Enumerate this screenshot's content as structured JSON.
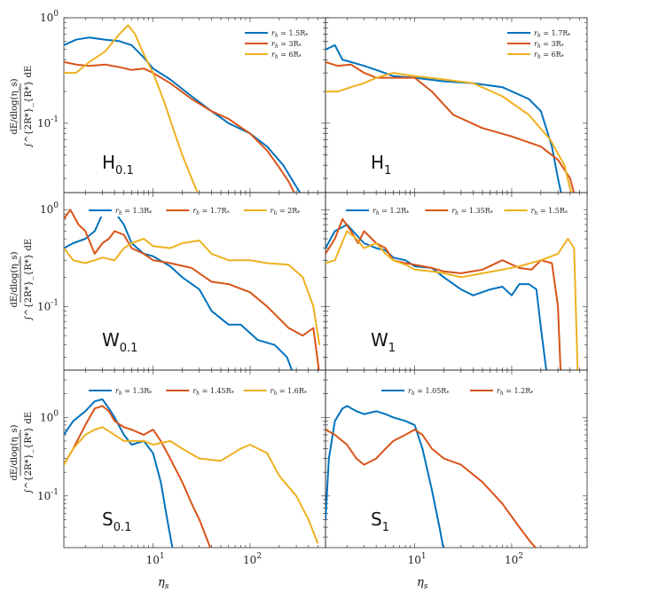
{
  "colors": {
    "blue": "#0072BD",
    "orange": "#D95319",
    "yellow": "#EDB120"
  },
  "axes": {
    "xlabel_sym": "η",
    "xlabel_sub": "s",
    "ylabel_num": "dE/dlog(η_s)",
    "ylabel_den_top": [
      "∫^{2R*}_{R*} dE",
      "∫^{2R*}_{R*} dE",
      "∫^{2R*}_{R*} dE"
    ],
    "ylabel_int": "∫",
    "ylabel_upper": "2R",
    "ylabel_lower": "R",
    "ylabel_star": "*",
    "ylabel_de": "dE",
    "xticks": [
      "10",
      "10",
      "10"
    ],
    "xtick_exps": [
      "1",
      "2",
      "2"
    ],
    "yticks": [
      "10",
      "10"
    ],
    "ytick_exps": [
      "0",
      "-1"
    ]
  },
  "chart_data": [
    {
      "type": "line",
      "panel": "H_{0.1}",
      "label_main": "H",
      "label_sub": "0.1",
      "xscale": "log",
      "yscale": "log",
      "xlim": [
        1.2,
        600
      ],
      "ylim": [
        0.022,
        1.0
      ],
      "legend": "top-right",
      "series": [
        {
          "name": "r_h = 1.5R_*",
          "legend_r": "r",
          "legend_h": "h",
          "legend_val": " = 1.5R",
          "color": "blue",
          "x": [
            1.2,
            1.6,
            2.2,
            3.2,
            4.5,
            6,
            8,
            10,
            15,
            25,
            40,
            60,
            100,
            150,
            220,
            300,
            350
          ],
          "y": [
            0.55,
            0.62,
            0.65,
            0.62,
            0.6,
            0.55,
            0.42,
            0.33,
            0.26,
            0.18,
            0.13,
            0.1,
            0.08,
            0.06,
            0.04,
            0.025,
            0.02
          ]
        },
        {
          "name": "r_h = 3R_*",
          "legend_r": "r",
          "legend_h": "h",
          "legend_val": " = 3R",
          "color": "orange",
          "x": [
            1.2,
            1.6,
            2.2,
            3.2,
            4.5,
            6,
            8,
            10,
            15,
            25,
            40,
            60,
            100,
            150,
            200,
            250,
            300
          ],
          "y": [
            0.38,
            0.36,
            0.35,
            0.36,
            0.34,
            0.32,
            0.33,
            0.3,
            0.24,
            0.17,
            0.13,
            0.11,
            0.08,
            0.055,
            0.038,
            0.028,
            0.02
          ]
        },
        {
          "name": "r_h = 6R_*",
          "legend_r": "r",
          "legend_h": "h",
          "legend_val": " = 6R",
          "color": "yellow",
          "x": [
            1.2,
            1.6,
            2.2,
            3.2,
            4.5,
            5.5,
            6.5,
            8,
            10,
            13,
            16,
            20,
            25,
            30
          ],
          "y": [
            0.3,
            0.3,
            0.38,
            0.48,
            0.7,
            0.85,
            0.7,
            0.45,
            0.3,
            0.16,
            0.09,
            0.05,
            0.03,
            0.02
          ]
        }
      ]
    },
    {
      "type": "line",
      "panel": "H_1",
      "label_main": "H",
      "label_sub": "1",
      "xscale": "log",
      "yscale": "log",
      "xlim": [
        1.2,
        600
      ],
      "ylim": [
        0.022,
        1.0
      ],
      "legend": "top-right",
      "series": [
        {
          "name": "r_h = 1.7R_*",
          "legend_r": "r",
          "legend_h": "h",
          "legend_val": " = 1.7R",
          "color": "blue",
          "x": [
            1.2,
            1.5,
            1.8,
            2.2,
            3,
            4,
            6,
            10,
            20,
            40,
            80,
            150,
            200,
            260,
            300,
            330
          ],
          "y": [
            0.5,
            0.55,
            0.4,
            0.38,
            0.35,
            0.32,
            0.28,
            0.27,
            0.25,
            0.24,
            0.22,
            0.17,
            0.13,
            0.06,
            0.03,
            0.02
          ]
        },
        {
          "name": "r_h = 3R_*",
          "legend_r": "r",
          "legend_h": "h",
          "legend_val": " = 3R",
          "color": "orange",
          "x": [
            1.2,
            1.6,
            2.2,
            3,
            4,
            6,
            10,
            15,
            25,
            50,
            100,
            200,
            300,
            400,
            450
          ],
          "y": [
            0.38,
            0.35,
            0.36,
            0.3,
            0.27,
            0.27,
            0.27,
            0.2,
            0.12,
            0.09,
            0.075,
            0.06,
            0.045,
            0.03,
            0.02
          ]
        },
        {
          "name": "r_h = 6R_*",
          "legend_r": "r",
          "legend_h": "h",
          "legend_val": " = 6R",
          "color": "yellow",
          "x": [
            1.2,
            1.6,
            2.2,
            3,
            4,
            6,
            10,
            20,
            40,
            80,
            150,
            250,
            350,
            420
          ],
          "y": [
            0.2,
            0.2,
            0.22,
            0.24,
            0.27,
            0.3,
            0.28,
            0.26,
            0.24,
            0.18,
            0.12,
            0.07,
            0.04,
            0.02
          ]
        }
      ]
    },
    {
      "type": "line",
      "panel": "W_{0.1}",
      "label_main": "W",
      "label_sub": "0.1",
      "xscale": "log",
      "yscale": "log",
      "xlim": [
        1.2,
        600
      ],
      "ylim": [
        0.022,
        1.5
      ],
      "legend": "top",
      "series": [
        {
          "name": "r_h = 1.3R_*",
          "legend_r": "r",
          "legend_h": "h",
          "legend_val": " = 1.3R",
          "color": "blue",
          "x": [
            1.2,
            1.5,
            2,
            2.5,
            3,
            3.5,
            4,
            5,
            6,
            8,
            10,
            15,
            20,
            30,
            40,
            60,
            80,
            120,
            180,
            240,
            280
          ],
          "y": [
            0.4,
            0.45,
            0.5,
            0.6,
            0.9,
            1.05,
            0.95,
            0.7,
            0.45,
            0.35,
            0.33,
            0.26,
            0.2,
            0.15,
            0.09,
            0.065,
            0.065,
            0.045,
            0.04,
            0.03,
            0.02
          ]
        },
        {
          "name": "r_h = 1.7R_*",
          "legend_r": "r",
          "legend_h": "h",
          "legend_val": " = 1.7R",
          "color": "orange",
          "x": [
            1.2,
            1.4,
            1.7,
            2,
            2.5,
            3,
            3.5,
            4,
            5,
            6,
            8,
            10,
            15,
            25,
            40,
            60,
            100,
            150,
            250,
            350,
            450,
            520
          ],
          "y": [
            0.8,
            1.0,
            0.7,
            0.6,
            0.35,
            0.45,
            0.5,
            0.6,
            0.55,
            0.4,
            0.35,
            0.3,
            0.28,
            0.25,
            0.18,
            0.17,
            0.14,
            0.1,
            0.06,
            0.05,
            0.06,
            0.02
          ]
        },
        {
          "name": "r_h = 2R_*",
          "legend_r": "r",
          "legend_h": "h",
          "legend_val": " = 2R",
          "color": "yellow",
          "x": [
            1.2,
            1.5,
            2,
            2.5,
            3,
            4,
            5,
            6,
            8,
            10,
            15,
            20,
            30,
            40,
            60,
            100,
            150,
            250,
            350,
            450,
            520
          ],
          "y": [
            0.4,
            0.3,
            0.28,
            0.3,
            0.32,
            0.3,
            0.4,
            0.45,
            0.5,
            0.42,
            0.4,
            0.45,
            0.48,
            0.35,
            0.3,
            0.3,
            0.28,
            0.27,
            0.2,
            0.1,
            0.04
          ]
        }
      ]
    },
    {
      "type": "line",
      "panel": "W_1",
      "label_main": "W",
      "label_sub": "1",
      "xscale": "log",
      "yscale": "log",
      "xlim": [
        1.2,
        600
      ],
      "ylim": [
        0.022,
        1.5
      ],
      "legend": "top",
      "series": [
        {
          "name": "r_h = 1.2R_*",
          "legend_r": "r",
          "legend_h": "h",
          "legend_val": " = 1.2R",
          "color": "blue",
          "x": [
            1.2,
            1.5,
            2,
            2.5,
            3,
            4,
            5,
            6,
            8,
            10,
            15,
            20,
            30,
            40,
            60,
            80,
            100,
            120,
            150,
            180,
            200,
            230
          ],
          "y": [
            0.4,
            0.6,
            0.7,
            0.55,
            0.45,
            0.4,
            0.38,
            0.32,
            0.3,
            0.26,
            0.25,
            0.2,
            0.15,
            0.13,
            0.15,
            0.16,
            0.13,
            0.17,
            0.17,
            0.15,
            0.06,
            0.02
          ]
        },
        {
          "name": "r_h = 1.35R_*",
          "legend_r": "r",
          "legend_h": "h",
          "legend_val": " = 1.35R",
          "color": "orange",
          "x": [
            1.2,
            1.5,
            1.8,
            2.2,
            2.6,
            3,
            4,
            5,
            6,
            8,
            10,
            15,
            20,
            30,
            50,
            80,
            120,
            160,
            200,
            260,
            300,
            320
          ],
          "y": [
            0.35,
            0.5,
            0.8,
            0.6,
            0.45,
            0.6,
            0.45,
            0.4,
            0.3,
            0.28,
            0.27,
            0.25,
            0.23,
            0.22,
            0.24,
            0.3,
            0.25,
            0.24,
            0.3,
            0.28,
            0.1,
            0.02
          ]
        },
        {
          "name": "r_h = 1.5R_*",
          "legend_r": "r",
          "legend_h": "h",
          "legend_val": " = 1.5R",
          "color": "yellow",
          "x": [
            1.2,
            1.5,
            2,
            2.5,
            3,
            4,
            5,
            6,
            8,
            10,
            15,
            20,
            30,
            50,
            80,
            120,
            200,
            300,
            380,
            440,
            480
          ],
          "y": [
            0.28,
            0.3,
            0.6,
            0.5,
            0.4,
            0.45,
            0.35,
            0.3,
            0.27,
            0.24,
            0.23,
            0.22,
            0.2,
            0.22,
            0.24,
            0.26,
            0.3,
            0.35,
            0.5,
            0.4,
            0.02
          ]
        }
      ]
    },
    {
      "type": "line",
      "panel": "S_{0.1}",
      "label_main": "S",
      "label_sub": "0.1",
      "xscale": "log",
      "yscale": "log",
      "xlim": [
        1.2,
        600
      ],
      "ylim": [
        0.022,
        4.0
      ],
      "legend": "top",
      "series": [
        {
          "name": "r_h = 1.3R_*",
          "legend_r": "r",
          "legend_h": "h",
          "legend_val": " = 1.3R",
          "color": "blue",
          "x": [
            1.2,
            1.5,
            2,
            2.5,
            3,
            3.5,
            4,
            5,
            6,
            8,
            10,
            12,
            14,
            16
          ],
          "y": [
            0.6,
            0.9,
            1.2,
            1.6,
            1.7,
            1.3,
            1.0,
            0.6,
            0.45,
            0.5,
            0.35,
            0.15,
            0.05,
            0.02
          ]
        },
        {
          "name": "r_h = 1.45R_*",
          "legend_r": "r",
          "legend_h": "h",
          "legend_val": " = 1.45R",
          "color": "orange",
          "x": [
            1.2,
            1.5,
            2,
            2.5,
            3,
            3.5,
            4,
            5,
            6,
            8,
            10,
            12,
            15,
            20,
            25,
            30,
            40
          ],
          "y": [
            0.25,
            0.4,
            0.8,
            1.3,
            1.4,
            1.2,
            0.9,
            0.75,
            0.7,
            0.6,
            0.7,
            0.5,
            0.3,
            0.15,
            0.08,
            0.05,
            0.02
          ]
        },
        {
          "name": "r_h = 1.6R_*",
          "legend_r": "r",
          "legend_h": "h",
          "legend_val": " = 1.6R",
          "color": "yellow",
          "x": [
            1.2,
            1.5,
            2,
            2.5,
            3,
            4,
            5,
            6,
            8,
            10,
            15,
            20,
            30,
            50,
            80,
            100,
            150,
            200,
            300,
            400,
            500
          ],
          "y": [
            0.25,
            0.4,
            0.6,
            0.7,
            0.75,
            0.6,
            0.5,
            0.5,
            0.5,
            0.45,
            0.5,
            0.4,
            0.3,
            0.28,
            0.4,
            0.45,
            0.35,
            0.18,
            0.1,
            0.05,
            0.025
          ]
        }
      ]
    },
    {
      "type": "line",
      "panel": "S_1",
      "label_main": "S",
      "label_sub": "1",
      "xscale": "log",
      "yscale": "log",
      "xlim": [
        1.2,
        600
      ],
      "ylim": [
        0.022,
        4.0
      ],
      "legend": "top",
      "series": [
        {
          "name": "r_h = 1.05R_*",
          "legend_r": "r",
          "legend_h": "h",
          "legend_val": " = 1.05R",
          "color": "blue",
          "x": [
            1.2,
            1.3,
            1.5,
            1.8,
            2,
            2.5,
            3,
            4,
            5,
            6,
            8,
            10,
            12,
            15,
            18,
            20
          ],
          "y": [
            0.05,
            0.3,
            0.9,
            1.3,
            1.4,
            1.2,
            1.1,
            1.2,
            1.1,
            1.0,
            0.9,
            0.8,
            0.4,
            0.12,
            0.04,
            0.02
          ]
        },
        {
          "name": "r_h = 1.2R_*",
          "legend_r": "r",
          "legend_h": "h",
          "legend_val": " = 1.2R",
          "color": "orange",
          "x": [
            1.2,
            1.5,
            2,
            2.5,
            3,
            4,
            5,
            6,
            8,
            10,
            12,
            15,
            20,
            30,
            50,
            80,
            120,
            160,
            190
          ],
          "y": [
            0.7,
            0.6,
            0.45,
            0.3,
            0.25,
            0.3,
            0.4,
            0.5,
            0.6,
            0.7,
            0.6,
            0.4,
            0.3,
            0.25,
            0.15,
            0.08,
            0.04,
            0.025,
            0.02
          ]
        }
      ]
    }
  ]
}
